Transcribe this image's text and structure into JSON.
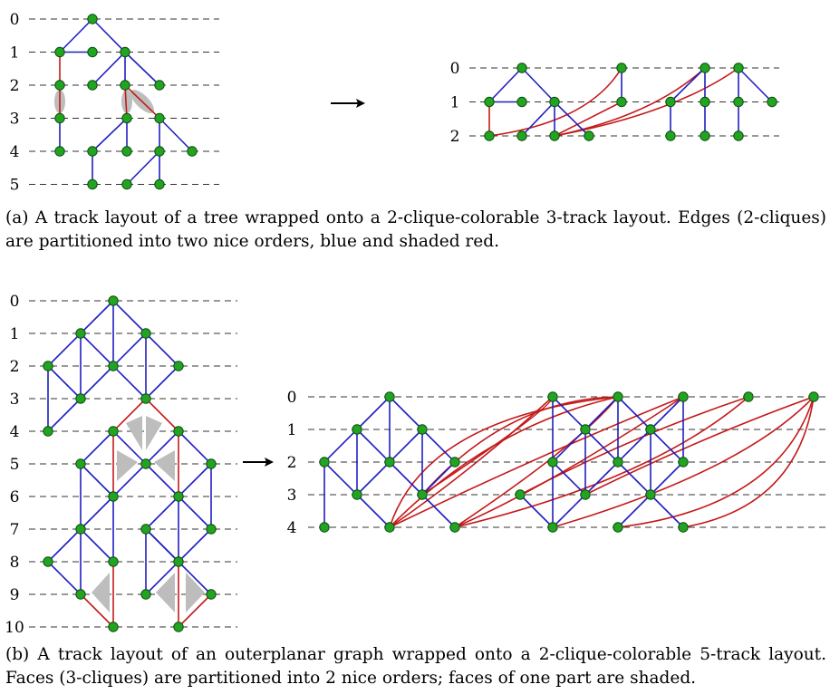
{
  "colors": {
    "tree_edge": "#1f1fc0",
    "red_edge": "#c41a1a",
    "vertex_fill": "#22a322",
    "vertex_stroke": "#0b4d0b",
    "shade": "#bdbdbd",
    "track_line": "#333333"
  },
  "panel_a": {
    "left_track_labels": [
      "0",
      "1",
      "2",
      "3",
      "4",
      "5"
    ],
    "right_track_labels": [
      "0",
      "1",
      "2"
    ],
    "caption": "(a) A track layout of a tree wrapped onto a 2-clique-colorable 3-track layout. Edges (2-cliques) are partitioned into two nice orders, blue and shaded red."
  },
  "panel_b": {
    "left_track_labels": [
      "0",
      "1",
      "2",
      "3",
      "4",
      "5",
      "6",
      "7",
      "8",
      "9",
      "10"
    ],
    "right_track_labels": [
      "0",
      "1",
      "2",
      "3",
      "4"
    ],
    "caption": "(b) A track layout of an outerplanar graph wrapped onto a 2-clique-colorable 5-track layout. Faces (3-cliques) are partitioned into 2 nice orders; faces of one part are shaded."
  },
  "arrow_icon": "right-arrow"
}
